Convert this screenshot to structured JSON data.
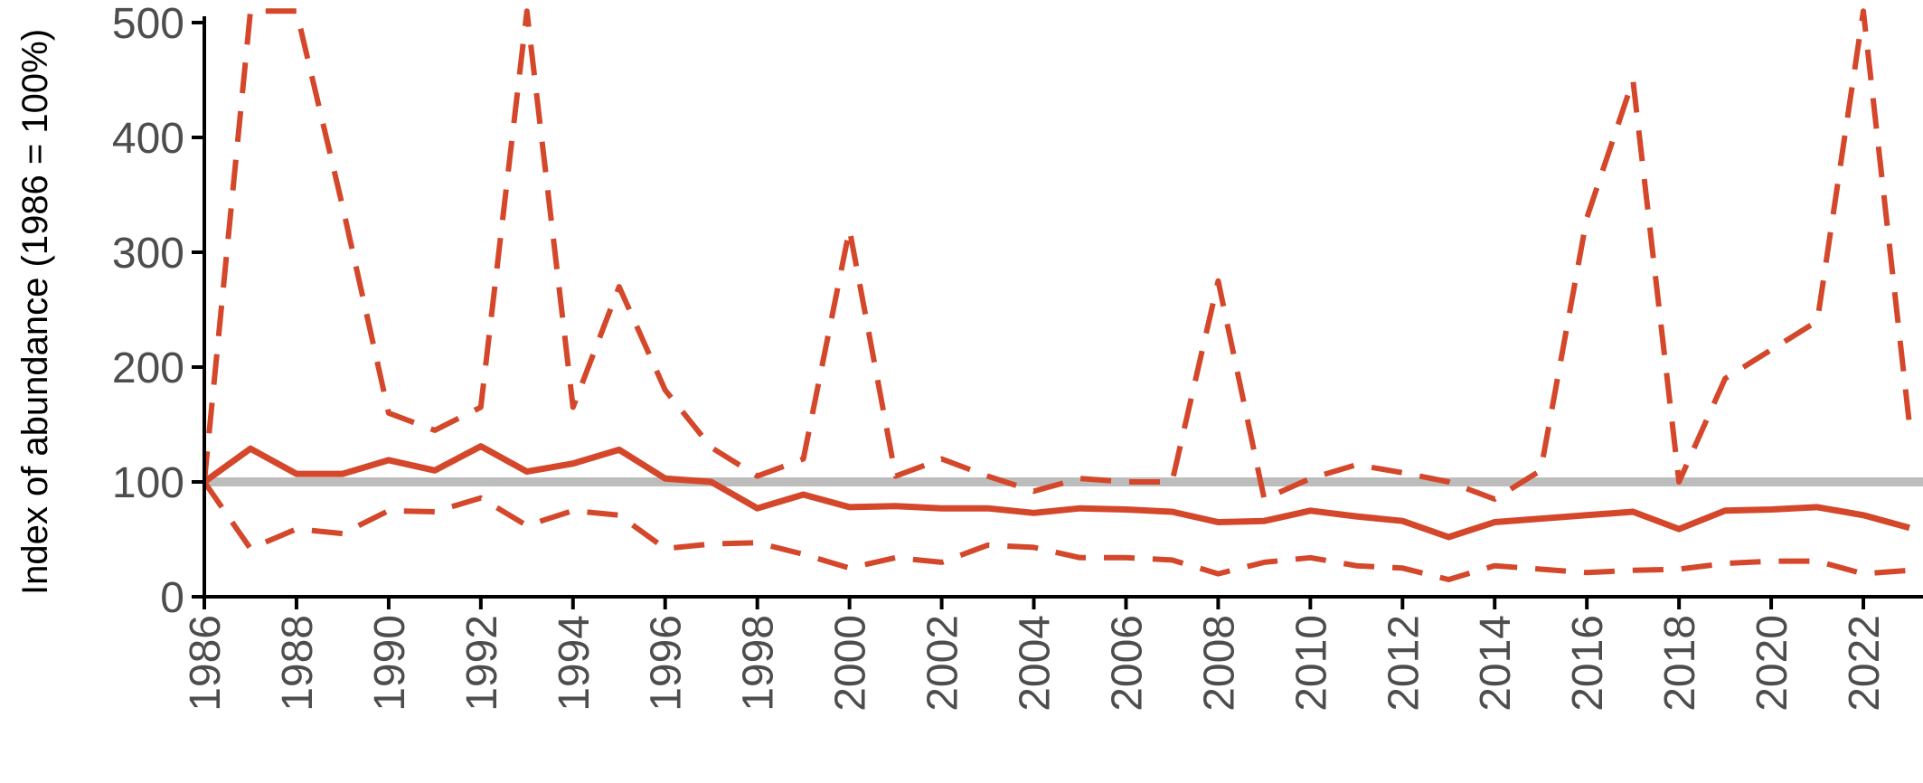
{
  "chart_data": {
    "type": "line",
    "xlabel": "",
    "ylabel": "Index of abundance (1986 = 100%)",
    "ylim": [
      0,
      500
    ],
    "xlim": [
      1986,
      2023
    ],
    "grid": false,
    "yticks": [
      0,
      100,
      200,
      300,
      400,
      500
    ],
    "xticks": [
      1986,
      1988,
      1990,
      1992,
      1994,
      1996,
      1998,
      2000,
      2002,
      2004,
      2006,
      2008,
      2010,
      2012,
      2014,
      2016,
      2018,
      2020,
      2022
    ],
    "reference_line": {
      "y": 100,
      "color": "#bdbdbd"
    },
    "x": [
      1986,
      1987,
      1988,
      1989,
      1990,
      1991,
      1992,
      1993,
      1994,
      1995,
      1996,
      1997,
      1998,
      1999,
      2000,
      2001,
      2002,
      2003,
      2004,
      2005,
      2006,
      2007,
      2008,
      2009,
      2010,
      2011,
      2012,
      2013,
      2014,
      2015,
      2016,
      2017,
      2018,
      2019,
      2020,
      2021,
      2022,
      2023
    ],
    "series": [
      {
        "style": "solid",
        "color": "#d4472a",
        "values": [
          100,
          129,
          107,
          107,
          119,
          110,
          131,
          109,
          116,
          128,
          103,
          100,
          77,
          89,
          78,
          79,
          77,
          77,
          73,
          77,
          76,
          74,
          65,
          66,
          75,
          70,
          66,
          52,
          65,
          68,
          71,
          74,
          59,
          75,
          76,
          78,
          71,
          60
        ]
      },
      {
        "style": "dashed",
        "color": "#d4472a",
        "values": [
          100,
          510,
          510,
          340,
          160,
          145,
          165,
          510,
          165,
          270,
          180,
          130,
          105,
          120,
          320,
          105,
          120,
          105,
          92,
          103,
          100,
          100,
          275,
          85,
          103,
          115,
          108,
          100,
          85,
          110,
          330,
          450,
          100,
          190,
          215,
          240,
          510,
          150
        ]
      },
      {
        "style": "dashed",
        "color": "#d4472a",
        "values": [
          100,
          42,
          59,
          55,
          75,
          74,
          86,
          62,
          75,
          71,
          42,
          46,
          47,
          37,
          25,
          34,
          30,
          45,
          43,
          34,
          34,
          32,
          20,
          30,
          34,
          27,
          25,
          15,
          27,
          24,
          21,
          23,
          24,
          29,
          31,
          31,
          20,
          23
        ]
      }
    ]
  }
}
